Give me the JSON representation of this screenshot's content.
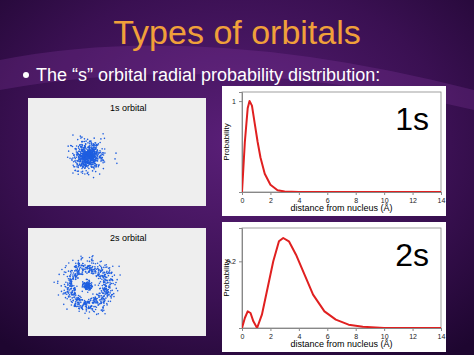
{
  "slide": {
    "title": "Types of orbitals",
    "bullet": "The “s” orbital radial probability distribution:"
  },
  "images": [
    {
      "label": "1s orbital"
    },
    {
      "label": "2s orbital"
    }
  ],
  "chart_data": [
    {
      "type": "line",
      "title": "1s",
      "x_label": "distance from nucleus (Å)",
      "y_label": "Probability",
      "x": [
        0,
        0.2,
        0.4,
        0.53,
        0.7,
        0.9,
        1.1,
        1.3,
        1.6,
        2,
        2.5,
        3,
        4,
        14
      ],
      "values": [
        0,
        0.55,
        0.92,
        1.0,
        0.95,
        0.75,
        0.55,
        0.38,
        0.2,
        0.08,
        0.02,
        0.005,
        0,
        0
      ],
      "color": "#e02020",
      "xlim": [
        0,
        14
      ],
      "xticks": [
        0,
        2,
        4,
        6,
        8,
        10,
        12,
        14
      ],
      "ylim": [
        0,
        1.1
      ],
      "yticks": [
        1
      ],
      "grid": false
    },
    {
      "type": "line",
      "title": "2s",
      "x_label": "distance from nucleus (Å)",
      "y_label": "Probability",
      "x": [
        0,
        0.2,
        0.4,
        0.6,
        0.8,
        1.06,
        1.4,
        1.8,
        2.2,
        2.6,
        2.9,
        3.3,
        3.8,
        4.4,
        5,
        5.8,
        6.6,
        7.5,
        8.5,
        10,
        14
      ],
      "values": [
        0,
        0.03,
        0.05,
        0.045,
        0.02,
        0,
        0.04,
        0.12,
        0.2,
        0.26,
        0.27,
        0.26,
        0.22,
        0.16,
        0.1,
        0.05,
        0.025,
        0.01,
        0.004,
        0,
        0
      ],
      "color": "#e02020",
      "xlim": [
        0,
        14
      ],
      "xticks": [
        0,
        2,
        4,
        6,
        8,
        10,
        12,
        14
      ],
      "ylim": [
        0,
        0.3
      ],
      "yticks": [
        0.2
      ],
      "grid": false
    }
  ]
}
